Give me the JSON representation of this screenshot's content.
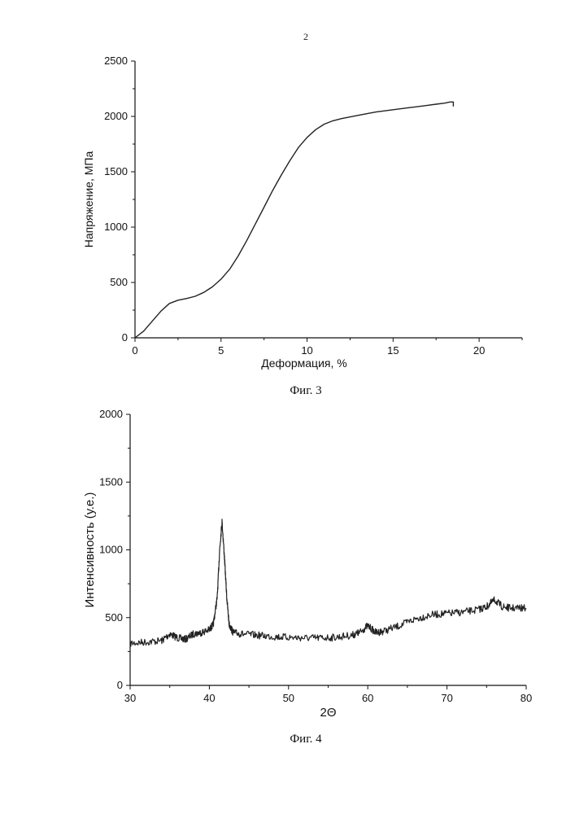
{
  "page_number": "2",
  "figures": [
    {
      "caption": "Фиг. 3",
      "chart_data": {
        "type": "line",
        "xlabel": "Деформация, %",
        "ylabel": "Напряжение, МПа",
        "xlim": [
          0,
          22.5
        ],
        "ylim": [
          0,
          2500
        ],
        "xticks": [
          0,
          5,
          10,
          15,
          20
        ],
        "yticks": [
          0,
          500,
          1000,
          1500,
          2000,
          2500
        ],
        "grid": false,
        "series": [
          {
            "x": [
              0,
              0.5,
              1.0,
              1.5,
              2.0,
              2.5,
              3.0,
              3.5,
              4.0,
              4.5,
              5.0,
              5.5,
              6.0,
              6.5,
              7.0,
              7.5,
              8.0,
              8.5,
              9.0,
              9.5,
              10.0,
              10.5,
              11.0,
              11.5,
              12.0,
              13.0,
              14.0,
              15.0,
              16.0,
              17.0,
              17.5,
              18.0,
              18.3,
              18.5,
              18.5
            ],
            "y": [
              0,
              60,
              150,
              240,
              310,
              340,
              355,
              375,
              410,
              460,
              530,
              620,
              740,
              880,
              1030,
              1180,
              1330,
              1470,
              1600,
              1720,
              1810,
              1880,
              1930,
              1960,
              1980,
              2010,
              2040,
              2060,
              2080,
              2100,
              2110,
              2120,
              2130,
              2130,
              2090
            ]
          }
        ]
      }
    },
    {
      "caption": "Фиг. 4",
      "chart_data": {
        "type": "line",
        "xlabel": "2Θ",
        "ylabel": "Интенсивность (у.е.)",
        "xlim": [
          30,
          80
        ],
        "ylim": [
          0,
          2000
        ],
        "xticks": [
          30,
          40,
          50,
          60,
          70,
          80
        ],
        "yticks": [
          0,
          500,
          1000,
          1500,
          2000
        ],
        "grid": false,
        "series": [
          {
            "x": [
              30,
              32,
              34,
              35,
              36,
              37,
              38,
              39,
              40,
              40.5,
              41,
              41.3,
              41.6,
              41.9,
              42.2,
              42.5,
              43,
              44,
              46,
              48,
              50,
              52,
              54,
              56,
              58,
              59,
              60,
              61,
              62,
              64,
              66,
              68,
              70,
              72,
              74,
              75,
              76,
              77,
              78,
              80
            ],
            "y": [
              310,
              320,
              330,
              380,
              350,
              340,
              380,
              390,
              410,
              450,
              650,
              1000,
              1210,
              950,
              650,
              450,
              390,
              380,
              370,
              360,
              355,
              350,
              350,
              355,
              370,
              390,
              440,
              390,
              400,
              440,
              490,
              520,
              530,
              540,
              560,
              580,
              630,
              580,
              570,
              570
            ]
          }
        ]
      }
    }
  ]
}
